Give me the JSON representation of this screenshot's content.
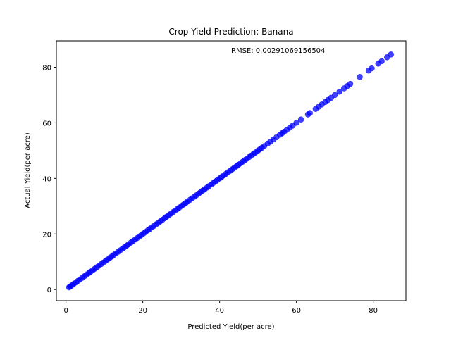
{
  "chart_data": {
    "type": "scatter",
    "title": "Crop Yield Prediction: Banana",
    "xlabel": "Predicted Yield(per acre)",
    "ylabel": "Actual Yield(per acre)",
    "xlim": [
      -2.5,
      88.5
    ],
    "ylim": [
      -4,
      89.5
    ],
    "xticks": [
      0,
      20,
      40,
      60,
      80
    ],
    "yticks": [
      0,
      20,
      40,
      60,
      80
    ],
    "annotation": "RMSE: 0.00291069156504",
    "marker_color": "#0000ff",
    "marker_alpha": 0.75,
    "grid": false,
    "series": [
      {
        "x": [
          0.8,
          1.1,
          1.5,
          2.0,
          2.6,
          3.1,
          3.6,
          4.2,
          4.8,
          5.3,
          5.9,
          6.4,
          7.0,
          7.5,
          8.1,
          8.6,
          9.2,
          9.7,
          10.3,
          10.8,
          11.4,
          11.9,
          12.5,
          13.0,
          13.6,
          14.1,
          14.7,
          15.2,
          15.8,
          16.3,
          16.9,
          17.4,
          18.0,
          18.5,
          19.1,
          19.6,
          20.2,
          20.7,
          21.3,
          21.8,
          22.4,
          22.9,
          23.5,
          24.0,
          24.6,
          25.1,
          25.7,
          26.2,
          26.8,
          27.3,
          27.9,
          28.4,
          29.0,
          29.5,
          30.1,
          30.6,
          31.2,
          31.7,
          32.3,
          32.8,
          33.4,
          33.9,
          34.5,
          35.0,
          35.6,
          36.1,
          36.7,
          37.2,
          37.8,
          38.3,
          38.9,
          39.4,
          40.0,
          40.5,
          41.1,
          41.6,
          42.2,
          42.7,
          43.3,
          43.8,
          44.4,
          44.9,
          45.5,
          46.0,
          46.6,
          47.1,
          47.7,
          48.2,
          48.8,
          49.3,
          49.9,
          50.4,
          51.0,
          51.6,
          52.5,
          53.2,
          54.0,
          54.8,
          55.7,
          56.3,
          56.8,
          57.5,
          58.3,
          59.0,
          60.0,
          61.2,
          63.0,
          63.5,
          65.0,
          65.8,
          66.6,
          67.5,
          68.2,
          69.0,
          70.0,
          71.2,
          72.4,
          73.2,
          74.0,
          76.5,
          78.8,
          79.6,
          81.3,
          82.2,
          83.6,
          84.6
        ],
        "y": [
          0.8,
          1.1,
          1.5,
          2.0,
          2.6,
          3.1,
          3.6,
          4.2,
          4.8,
          5.3,
          5.9,
          6.4,
          7.0,
          7.5,
          8.1,
          8.6,
          9.2,
          9.7,
          10.3,
          10.8,
          11.4,
          11.9,
          12.5,
          13.0,
          13.6,
          14.1,
          14.7,
          15.2,
          15.8,
          16.3,
          16.9,
          17.4,
          18.0,
          18.5,
          19.1,
          19.6,
          20.2,
          20.7,
          21.3,
          21.8,
          22.4,
          22.9,
          23.5,
          24.0,
          24.6,
          25.1,
          25.7,
          26.2,
          26.8,
          27.3,
          27.9,
          28.4,
          29.0,
          29.5,
          30.1,
          30.6,
          31.2,
          31.7,
          32.3,
          32.8,
          33.4,
          33.9,
          34.5,
          35.0,
          35.6,
          36.1,
          36.7,
          37.2,
          37.8,
          38.3,
          38.9,
          39.4,
          40.0,
          40.5,
          41.1,
          41.6,
          42.2,
          42.7,
          43.3,
          43.8,
          44.4,
          44.9,
          45.5,
          46.0,
          46.6,
          47.1,
          47.7,
          48.2,
          48.8,
          49.3,
          49.9,
          50.4,
          51.0,
          51.6,
          52.5,
          53.2,
          54.0,
          54.8,
          55.7,
          56.3,
          56.8,
          57.5,
          58.3,
          59.0,
          60.0,
          61.2,
          63.0,
          63.5,
          65.0,
          65.8,
          66.6,
          67.5,
          68.2,
          69.0,
          70.0,
          71.2,
          72.4,
          73.2,
          74.0,
          76.5,
          78.8,
          79.6,
          81.3,
          82.2,
          83.6,
          84.6
        ]
      }
    ]
  }
}
